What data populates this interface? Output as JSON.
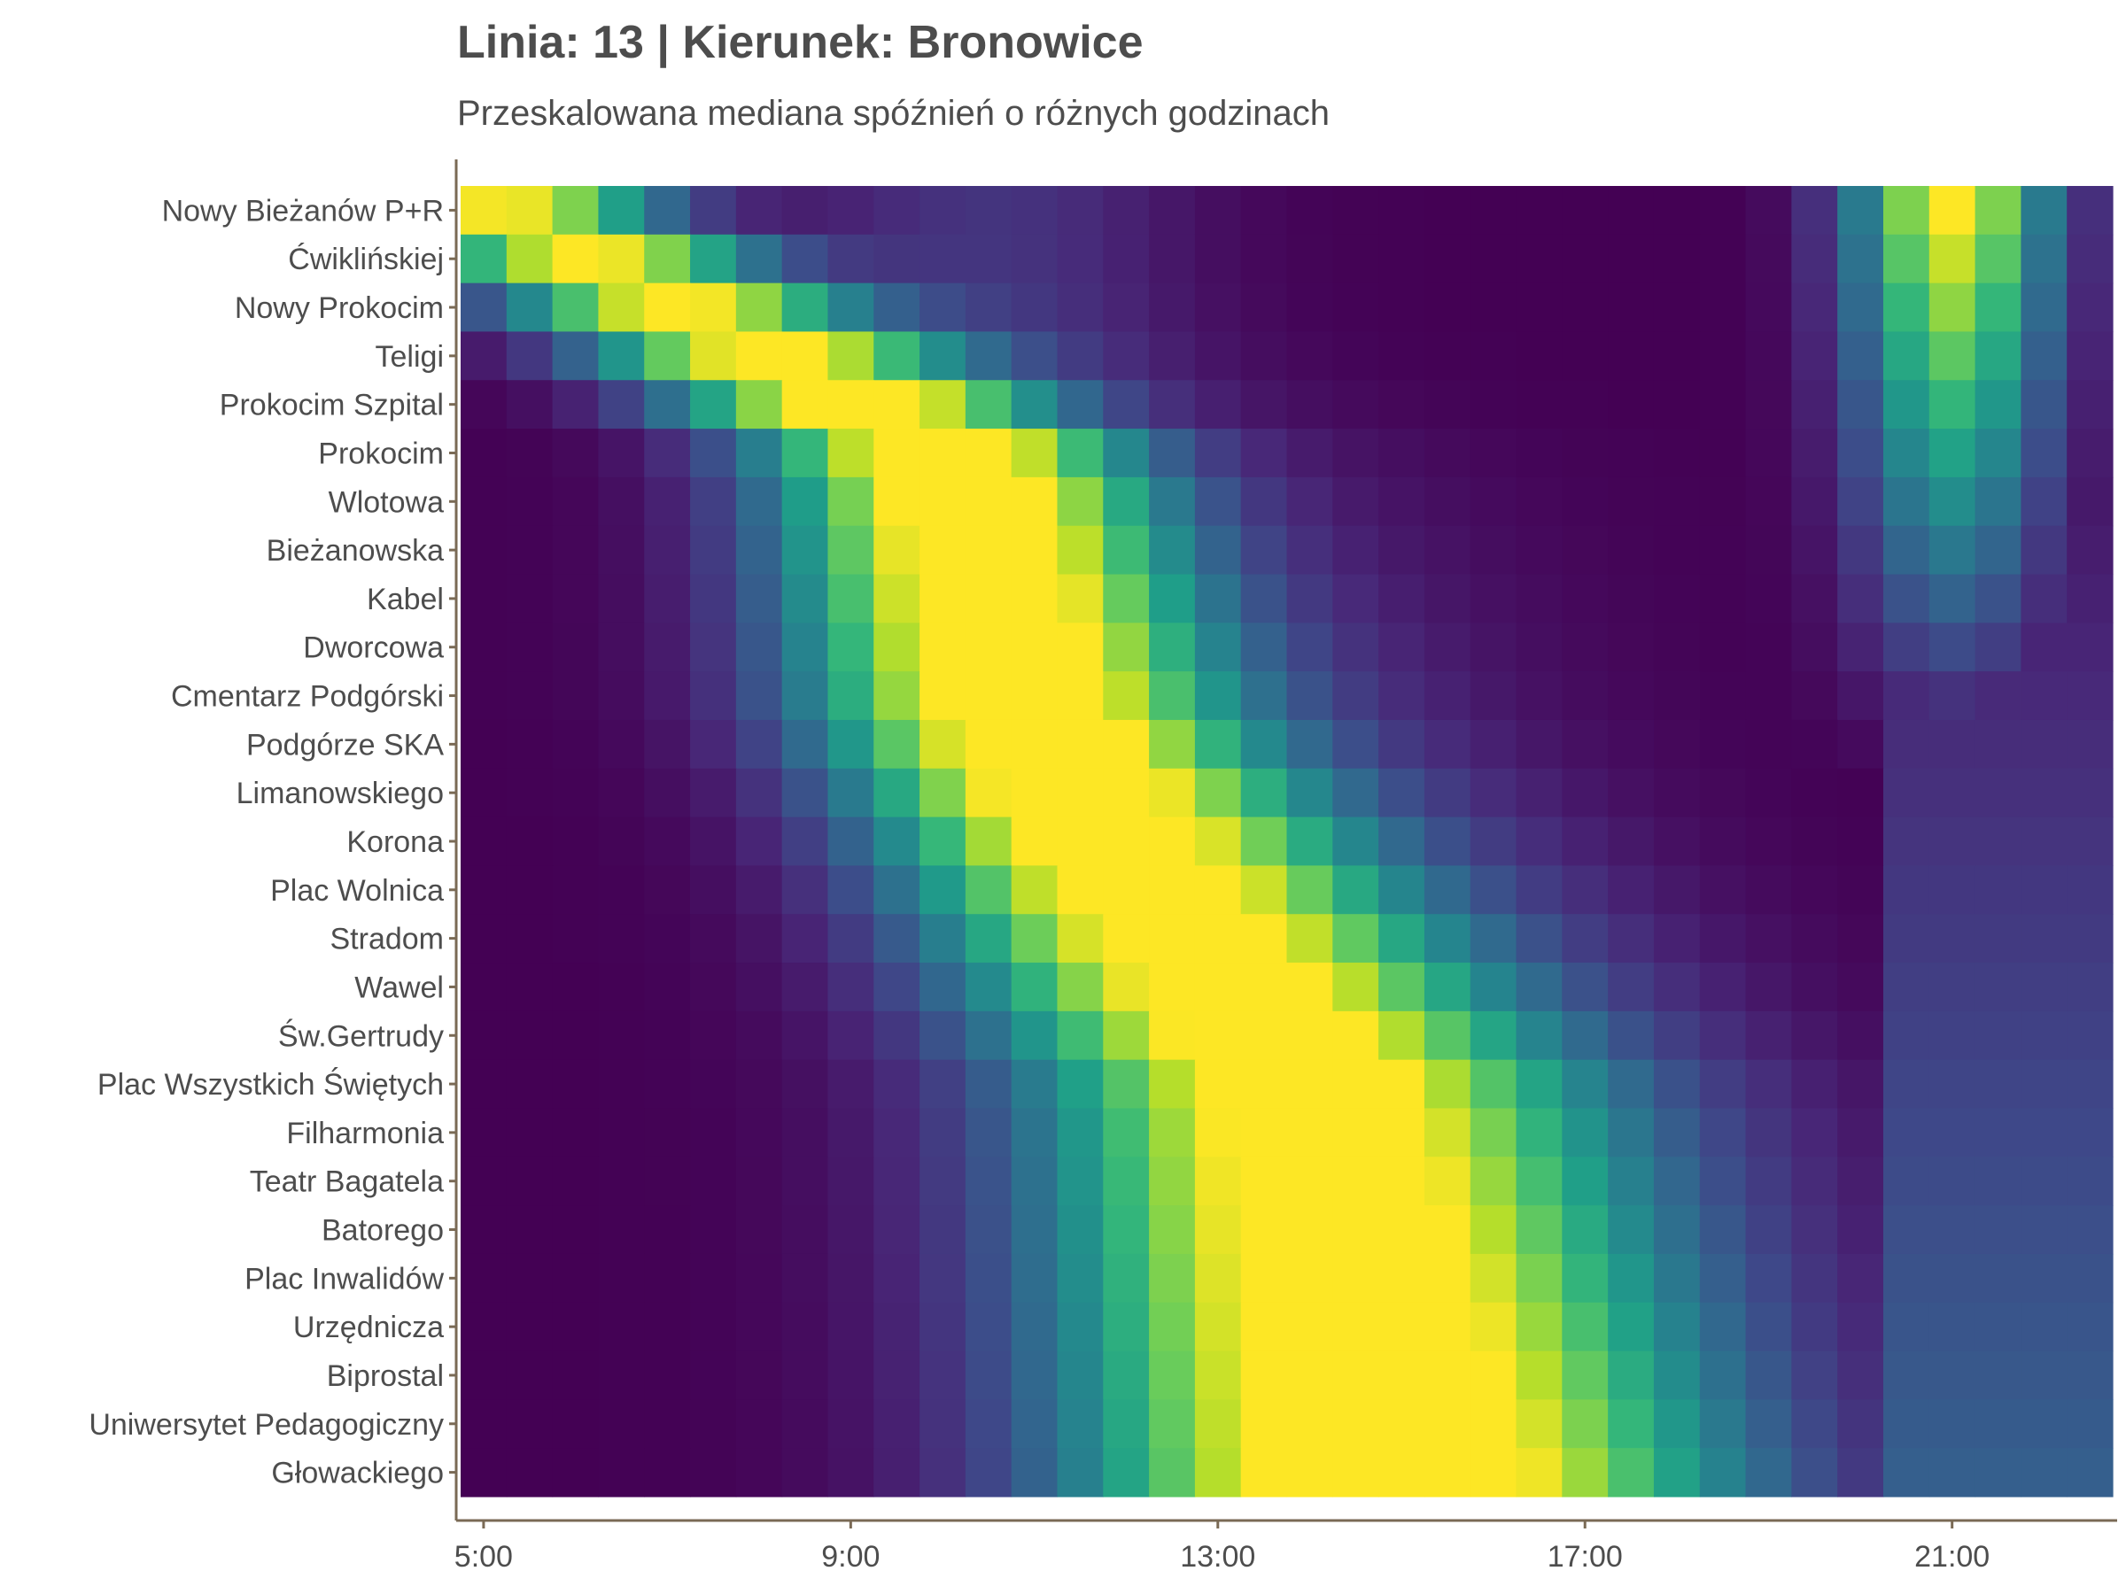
{
  "chart_data": {
    "type": "heatmap",
    "title": "Linia: 13 | Kierunek: Bronowice",
    "subtitle": "Przeskalowana mediana spóźnień o różnych godzinach",
    "xlabel": "",
    "ylabel": "",
    "x_unit": "hour",
    "x_start_hour": 4.75,
    "x_end_hour": 22.75,
    "x_bin_hours": 0.5,
    "x_ticks": [
      {
        "label": "5:00",
        "value": 5
      },
      {
        "label": "9:00",
        "value": 9
      },
      {
        "label": "13:00",
        "value": 13
      },
      {
        "label": "17:00",
        "value": 17
      },
      {
        "label": "21:00",
        "value": 21
      }
    ],
    "stops": [
      "Nowy Bieżanów P+R",
      "Ćwiklińskiej",
      "Nowy Prokocim",
      "Teligi",
      "Prokocim Szpital",
      "Prokocim",
      "Wlotowa",
      "Bieżanowska",
      "Kabel",
      "Dworcowa",
      "Cmentarz Podgórski",
      "Podgórze SKA",
      "Limanowskiego",
      "Korona",
      "Plac Wolnica",
      "Stradom",
      "Wawel",
      "Św.Gertrudy",
      "Plac Wszystkich Świętych",
      "Filharmonia",
      "Teatr Bagatela",
      "Batorego",
      "Plac Inwalidów",
      "Urzędnicza",
      "Biprostal",
      "Uniwersytet Pedagogiczny",
      "Głowackiego"
    ],
    "value_range": [
      0,
      1
    ],
    "colormap": "viridis",
    "colors": {
      "axis": "#7a6a55",
      "text": "#4d4d4d",
      "viridis": [
        "#440154",
        "#482878",
        "#3e4989",
        "#31688e",
        "#26828e",
        "#1f9e89",
        "#35b779",
        "#6ece58",
        "#b5de2b",
        "#fde725"
      ]
    }
  }
}
